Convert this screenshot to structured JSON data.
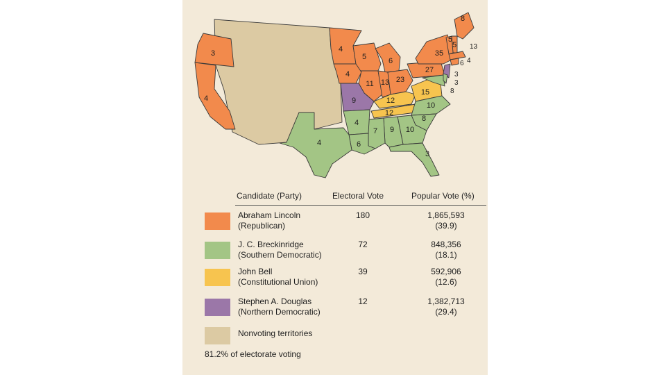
{
  "colors": {
    "republican": "#f28a4c",
    "southern_democratic": "#a3c585",
    "constitutional_union": "#f7c44f",
    "northern_democratic": "#9b77a8",
    "nonvoting": "#dccaa3",
    "background": "#f3ead9"
  },
  "map": {
    "electoral_votes": {
      "OR": "3",
      "CA": "4",
      "MN": "4",
      "WI": "5",
      "MI": "6",
      "IA": "4",
      "IL": "11",
      "IN": "13",
      "OH": "23",
      "PA": "27",
      "NY": "35",
      "ME": "8",
      "NH": "5",
      "VT": "5",
      "MA": "13",
      "RI": "4",
      "CT": "6",
      "NJ": "3",
      "DE": "3",
      "MD": "8",
      "MO": "9",
      "KY": "12",
      "TN": "12",
      "VA": "15",
      "NC": "10",
      "SC": "8",
      "GA": "10",
      "AL": "9",
      "MS": "7",
      "LA": "6",
      "AR": "4",
      "TX": "4",
      "FL": "3"
    }
  },
  "legend": {
    "headers": {
      "candidate": "Candidate (Party)",
      "electoral": "Electoral Vote",
      "popular": "Popular Vote (%)"
    },
    "rows": [
      {
        "candidate": "Abraham Lincoln",
        "party": "(Republican)",
        "electoral": "180",
        "popular": "1,865,593",
        "percent": "(39.9)"
      },
      {
        "candidate": "J. C. Breckinridge",
        "party": "(Southern Democratic)",
        "electoral": "72",
        "popular": "848,356",
        "percent": "(18.1)"
      },
      {
        "candidate": "John Bell",
        "party": "(Constitutional Union)",
        "electoral": "39",
        "popular": "592,906",
        "percent": "(12.6)"
      },
      {
        "candidate": "Stephen A. Douglas",
        "party": "(Northern Democratic)",
        "electoral": "12",
        "popular": "1,382,713",
        "percent": "(29.4)"
      }
    ],
    "nonvoting": "Nonvoting territories"
  },
  "footer": "81.2% of electorate voting"
}
